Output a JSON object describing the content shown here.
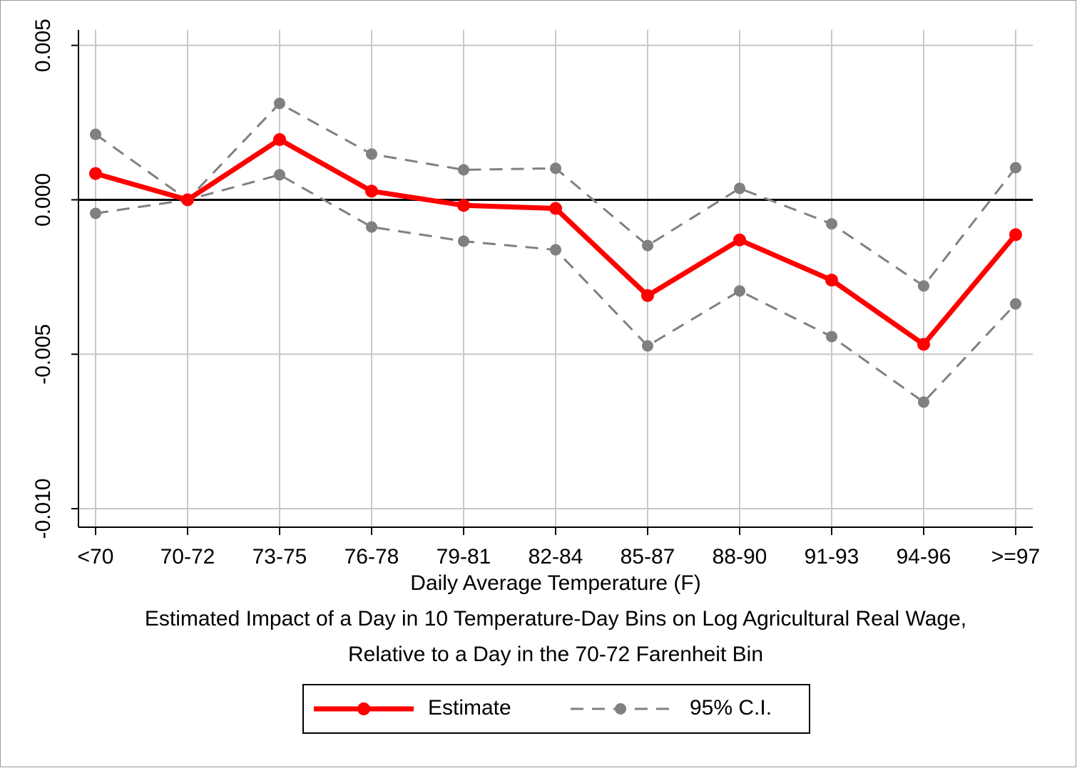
{
  "chart_data": {
    "type": "line",
    "xlabel": "Daily Average Temperature (F)",
    "note": [
      "Estimated Impact of a Day in 10 Temperature-Day Bins on Log Agricultural Real Wage,",
      "Relative to a Day in the 70-72 Farenheit Bin"
    ],
    "categories": [
      "<70",
      "70-72",
      "73-75",
      "76-78",
      "79-81",
      "82-84",
      "85-87",
      "88-90",
      "91-93",
      "94-96",
      ">=97"
    ],
    "series": [
      {
        "name": "Estimate",
        "color": "#ff0000",
        "style": "solid",
        "values": [
          0.00085,
          0,
          0.00195,
          0.00028,
          -0.00018,
          -0.00028,
          -0.0031,
          -0.0013,
          -0.0026,
          -0.00468,
          -0.00113
        ]
      },
      {
        "name": "95% C.I.",
        "color": "#808080",
        "style": "dashed",
        "values": [
          0.00212,
          0,
          0.00312,
          0.00148,
          0.00097,
          0.00102,
          -0.00148,
          0.00037,
          -0.00078,
          -0.00279,
          0.00104
        ],
        "lower": [
          -0.00044,
          0,
          0.00081,
          -0.00088,
          -0.00134,
          -0.00162,
          -0.00473,
          -0.00295,
          -0.00443,
          -0.00655,
          -0.00337
        ]
      }
    ],
    "ylim": [
      -0.0106,
      0.0055
    ],
    "yticks": [
      {
        "value": -0.01,
        "label": "-0.010"
      },
      -0.005,
      {
        "value": 0,
        "label": "0.000"
      },
      0.005
    ],
    "grid": true,
    "zero_line": true,
    "legend": "bottom"
  }
}
